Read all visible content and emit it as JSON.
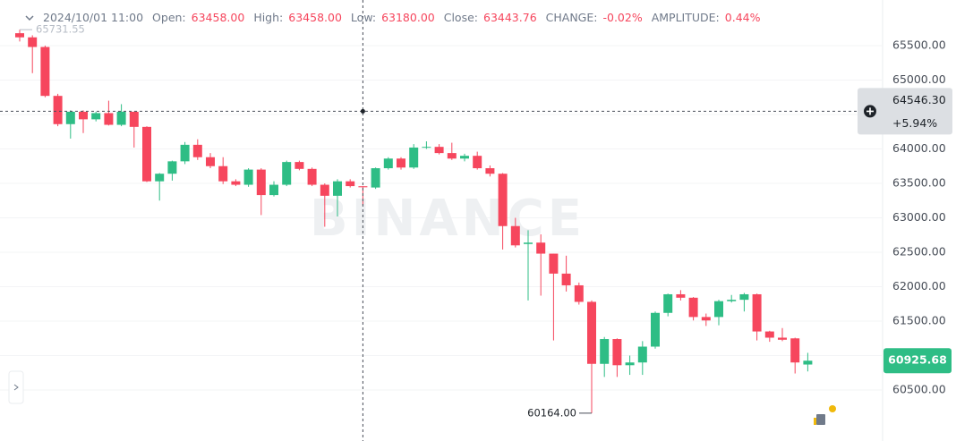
{
  "chart_data": {
    "type": "candlestick",
    "header": {
      "time": "2024/10/01 11:00",
      "fields": [
        {
          "label": "Open:",
          "value": "63458.00"
        },
        {
          "label": "High:",
          "value": "63458.00"
        },
        {
          "label": "Low:",
          "value": "63180.00"
        },
        {
          "label": "Close:",
          "value": "63443.76"
        },
        {
          "label": "CHANGE:",
          "value": "-0.02%"
        },
        {
          "label": "AMPLITUDE:",
          "value": "0.44%"
        }
      ]
    },
    "watermark": "BINANCE",
    "up_color": "#2ebd85",
    "down_color": "#f6465d",
    "open": [
      65680,
      65620,
      65480,
      64770,
      64360,
      64540,
      64430,
      64520,
      64350,
      64540,
      64320,
      63530,
      63640,
      63820,
      64060,
      63880,
      63750,
      63530,
      63480,
      63700,
      63330,
      63480,
      63810,
      63710,
      63480,
      63320,
      63530,
      63458,
      63440,
      63720,
      63860,
      63730,
      64020,
      64030,
      63940,
      63860,
      63900,
      63720,
      63640,
      62880,
      62620,
      62640,
      62480,
      62190,
      62020,
      61780,
      60880,
      61240,
      60860,
      60900,
      61130,
      61620,
      61890,
      61840,
      61560,
      61560,
      61790,
      61810,
      61890,
      61350,
      61260,
      61250,
      60870
    ],
    "high": [
      65730,
      65650,
      65500,
      64800,
      64560,
      64560,
      64540,
      64700,
      64650,
      64540,
      64330,
      63650,
      63830,
      64100,
      64140,
      63940,
      63880,
      63560,
      63720,
      63720,
      63530,
      63830,
      63830,
      63730,
      63500,
      63560,
      63560,
      63458,
      63730,
      63880,
      63880,
      64070,
      64110,
      64070,
      64090,
      63930,
      63960,
      63760,
      63650,
      63000,
      62820,
      62760,
      62480,
      62450,
      62060,
      61800,
      61270,
      61250,
      61000,
      61210,
      61640,
      61900,
      61950,
      61850,
      61610,
      61810,
      61880,
      61910,
      61900,
      61360,
      61400,
      61260,
      61040
    ],
    "low": [
      65560,
      65100,
      64750,
      64330,
      64150,
      64230,
      64400,
      64340,
      64330,
      64020,
      63520,
      63250,
      63540,
      63780,
      63840,
      63720,
      63490,
      63460,
      63450,
      63040,
      63310,
      63460,
      63690,
      63460,
      62870,
      63020,
      63440,
      63180,
      63420,
      63700,
      63700,
      63710,
      64000,
      63920,
      63840,
      63820,
      63700,
      63600,
      62540,
      62570,
      61800,
      61870,
      61220,
      61930,
      61740,
      60164,
      60690,
      60690,
      60720,
      60720,
      61100,
      61570,
      61800,
      61510,
      61430,
      61440,
      61770,
      61640,
      61220,
      61200,
      61210,
      60740,
      60770
    ],
    "close": [
      65620,
      65480,
      64770,
      64360,
      64540,
      64430,
      64520,
      64350,
      64540,
      64320,
      63530,
      63640,
      63820,
      64060,
      63880,
      63750,
      63530,
      63480,
      63700,
      63330,
      63480,
      63810,
      63710,
      63480,
      63320,
      63530,
      63460,
      63443.76,
      63720,
      63860,
      63730,
      64020,
      64030,
      63940,
      63860,
      63900,
      63720,
      63640,
      62880,
      62600,
      62640,
      62480,
      62190,
      62020,
      61780,
      60880,
      61240,
      60860,
      60900,
      61130,
      61620,
      61890,
      61840,
      61560,
      61510,
      61790,
      61810,
      61890,
      61350,
      61260,
      61230,
      60900,
      60925.68
    ],
    "ylim": [
      59760,
      66162
    ],
    "yticks": [
      {
        "value": 60500,
        "label": "60500.00"
      },
      {
        "value": 61000,
        "label": "61000.00"
      },
      {
        "value": 61500,
        "label": "61500.00"
      },
      {
        "value": 62000,
        "label": "62000.00"
      },
      {
        "value": 62500,
        "label": "62500.00"
      },
      {
        "value": 63000,
        "label": "63000.00"
      },
      {
        "value": 63500,
        "label": "63500.00"
      },
      {
        "value": 64000,
        "label": "64000.00"
      },
      {
        "value": 64500,
        "label": "64500.00"
      },
      {
        "value": 65000,
        "label": "65000.00"
      },
      {
        "value": 65500,
        "label": "65500.00"
      }
    ],
    "grid": true,
    "crosshair": {
      "price": {
        "value": 64546.3,
        "label": "64546.30"
      },
      "change": "+5.94%",
      "index": 27
    },
    "last_price": {
      "value": 60925.68,
      "label": "60925.68"
    },
    "min_label": {
      "value": 60164,
      "label": "60164.00",
      "index": 45
    },
    "max_label": {
      "value": 65731.55,
      "label": "65731.55"
    }
  }
}
